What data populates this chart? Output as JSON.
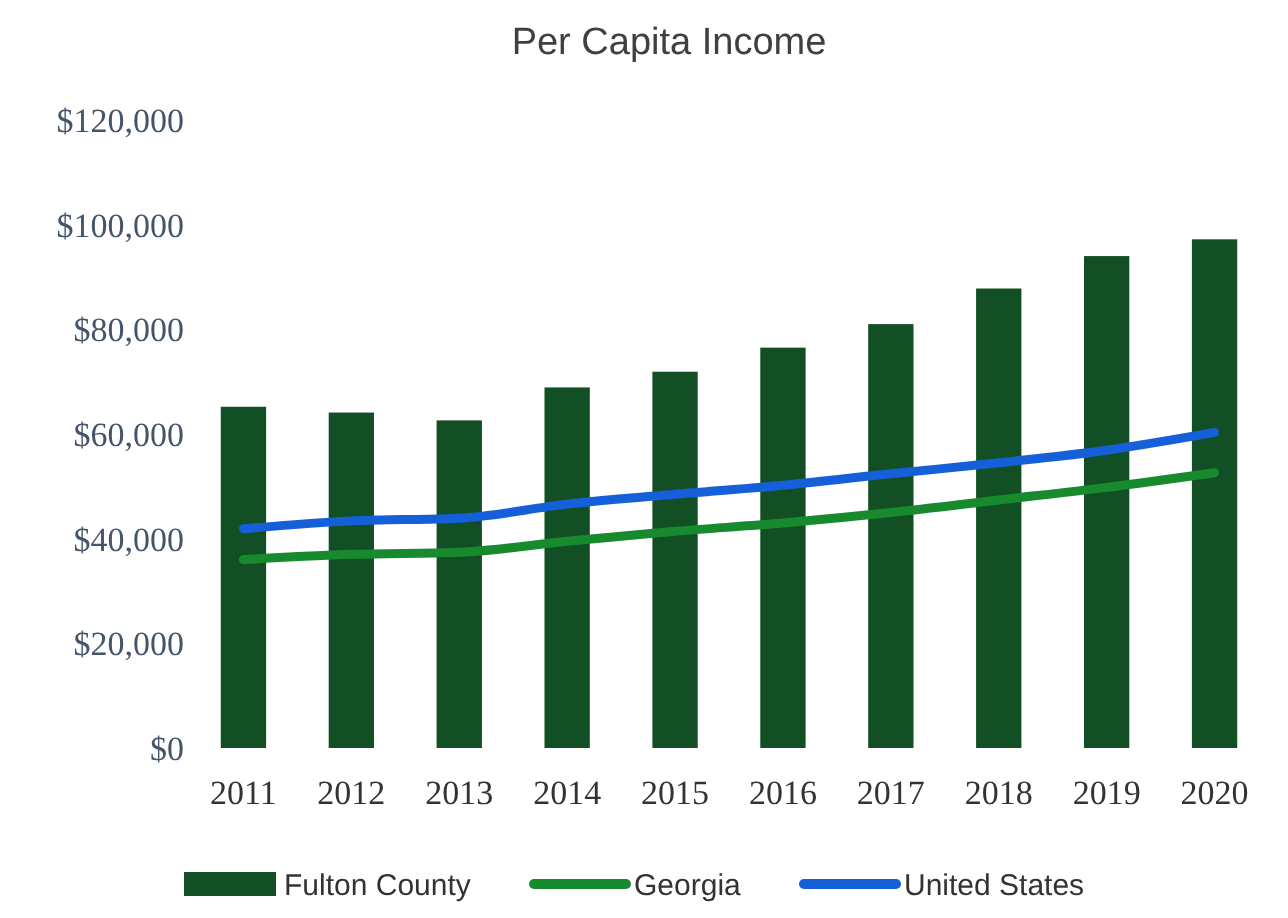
{
  "chart_data": {
    "type": "bar",
    "title": "Per Capita Income",
    "categories": [
      "2011",
      "2012",
      "2013",
      "2014",
      "2015",
      "2016",
      "2017",
      "2018",
      "2019",
      "2020"
    ],
    "series": [
      {
        "name": "Fulton County",
        "color": "#134f24",
        "values": [
          65200,
          64100,
          62600,
          68900,
          71900,
          76500,
          81000,
          87800,
          94000,
          97200
        ]
      },
      {
        "name": "Georgia",
        "type": "line",
        "color": "#178a2e",
        "values": [
          36000,
          37000,
          37400,
          39500,
          41400,
          43000,
          45000,
          47400,
          49800,
          52600
        ]
      },
      {
        "name": "United States",
        "type": "line",
        "color": "#1560d8",
        "values": [
          41900,
          43400,
          43900,
          46600,
          48500,
          50200,
          52400,
          54500,
          56900,
          60300
        ]
      }
    ],
    "ylim": [
      0,
      120000
    ],
    "yticks": [
      {
        "value": 0,
        "label": "$0"
      },
      {
        "value": 20000,
        "label": "$20,000"
      },
      {
        "value": 40000,
        "label": "$40,000"
      },
      {
        "value": 60000,
        "label": "$60,000"
      },
      {
        "value": 80000,
        "label": "$80,000"
      },
      {
        "value": 100000,
        "label": "$100,000"
      },
      {
        "value": 120000,
        "label": "$120,000"
      }
    ],
    "legend": "bottom",
    "line_style": "solid"
  }
}
